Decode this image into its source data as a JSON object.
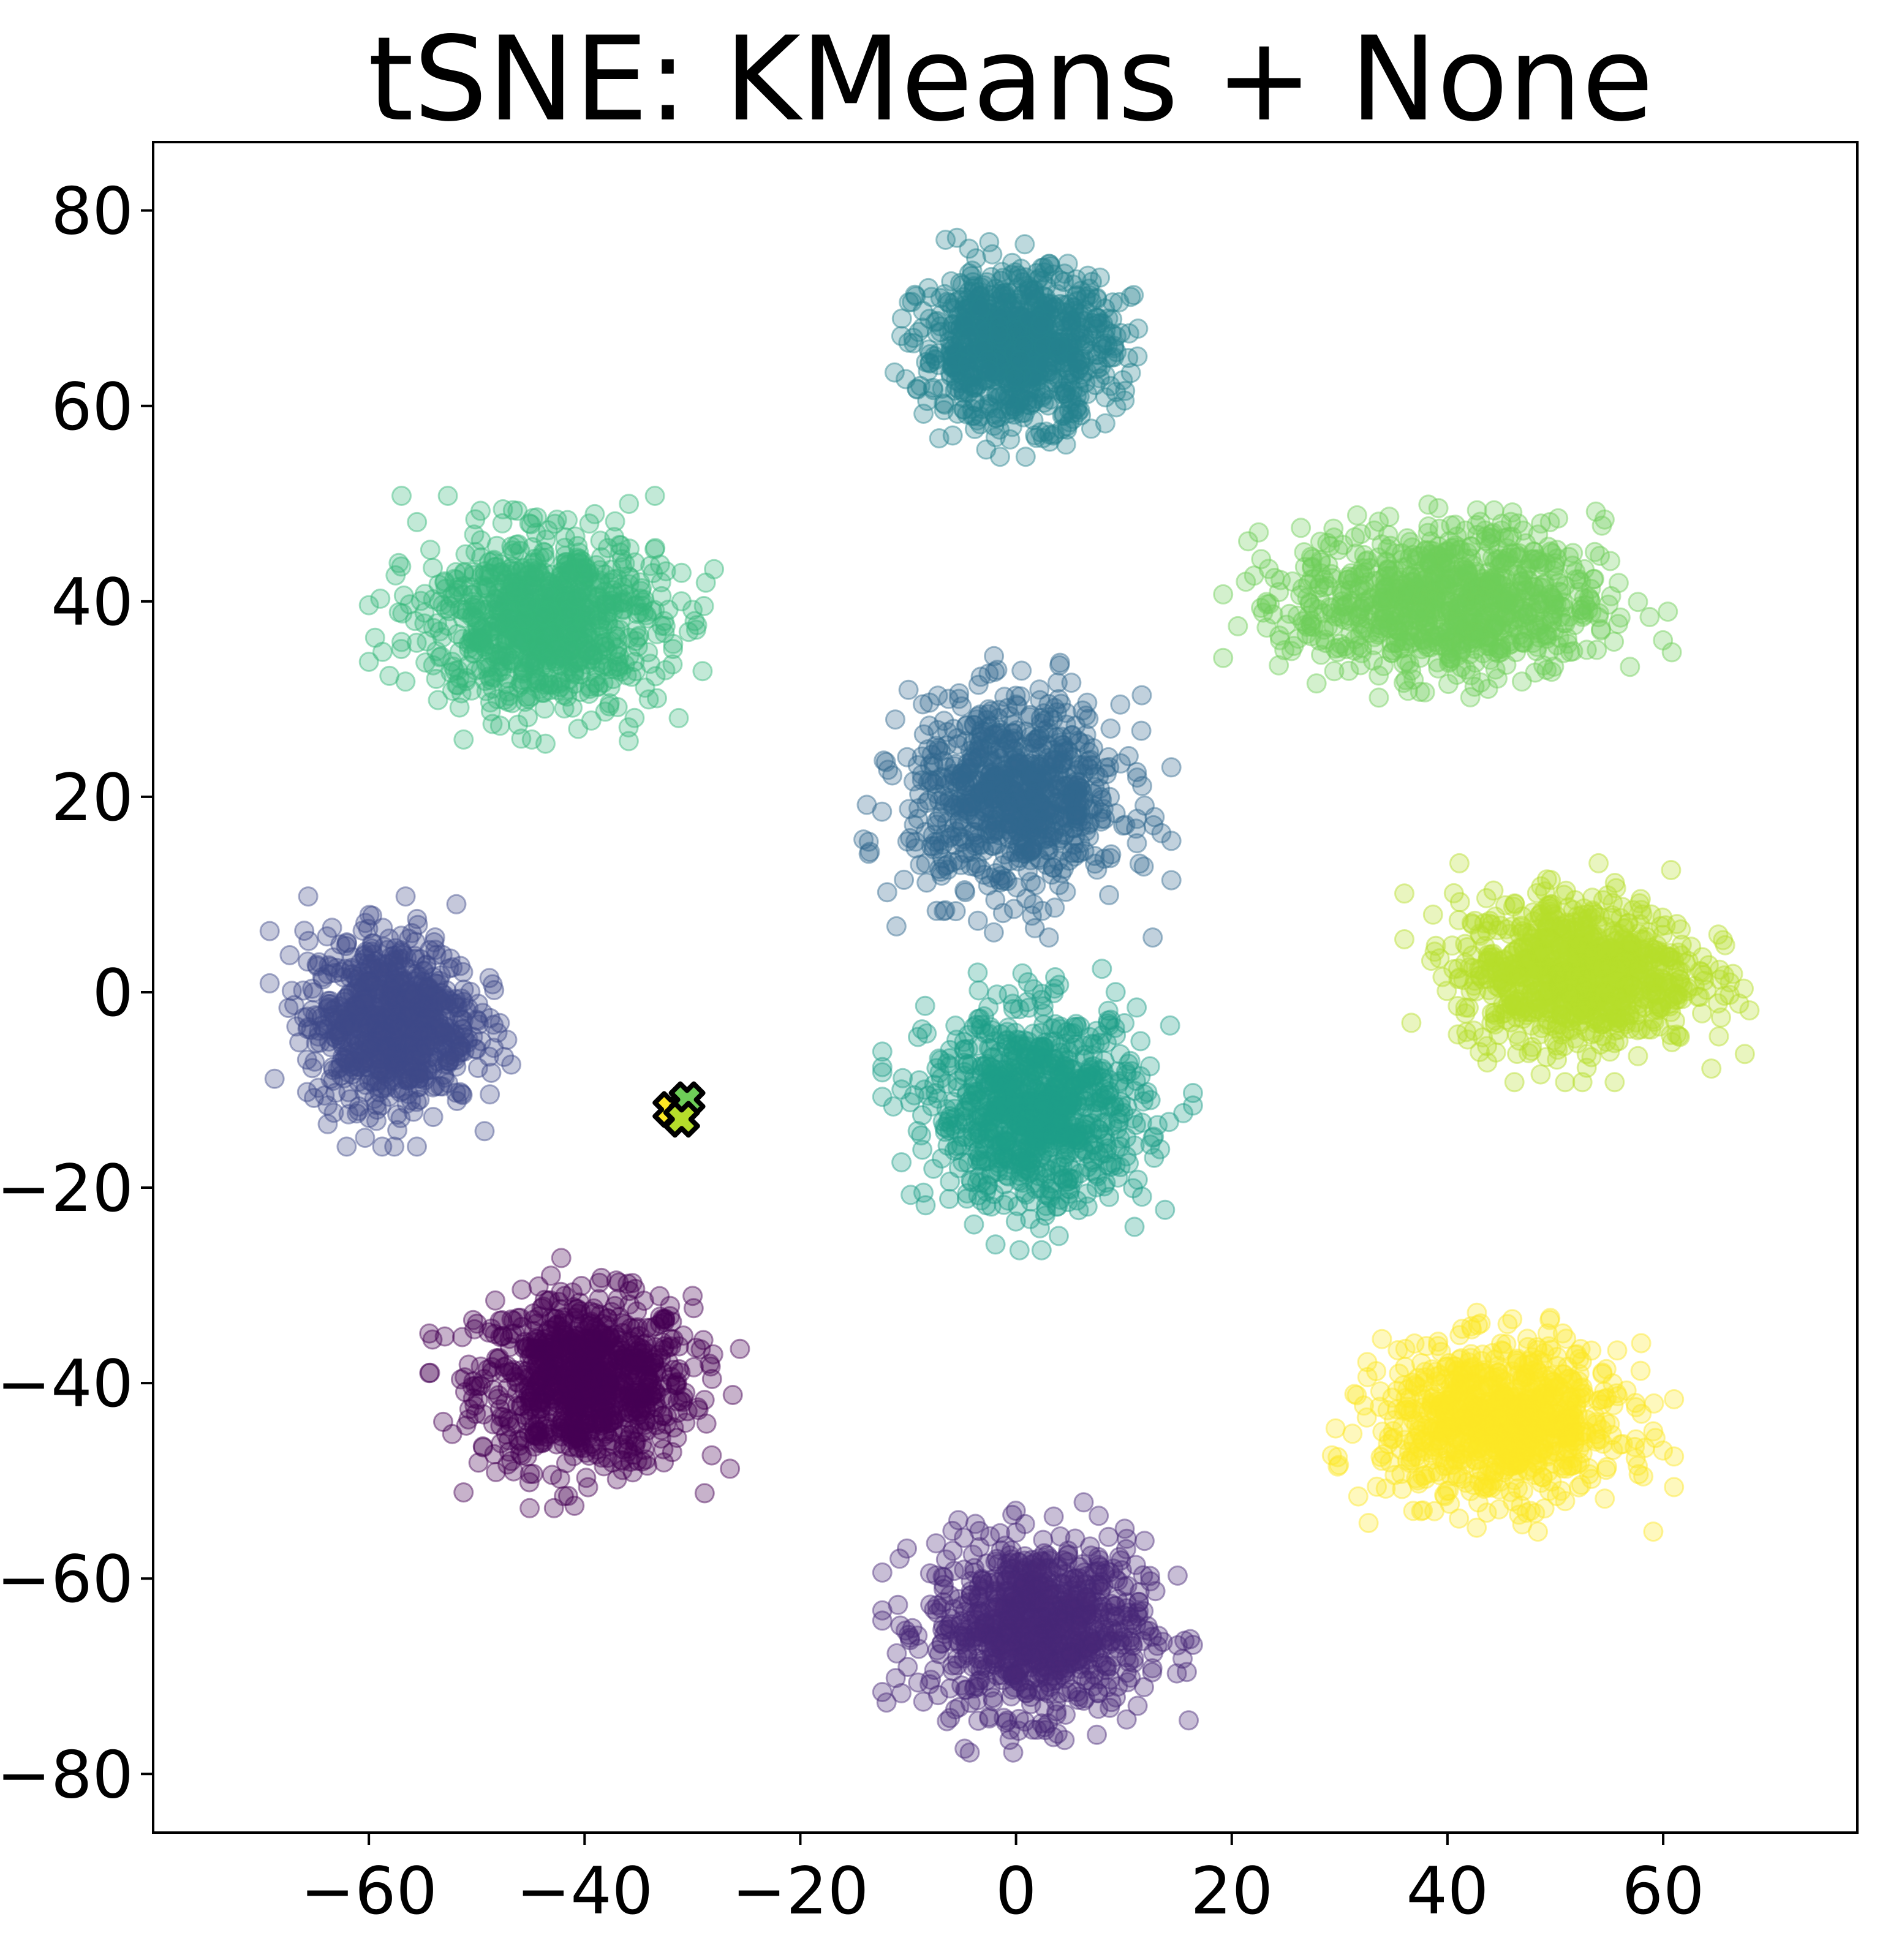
{
  "chart_data": {
    "type": "scatter",
    "title": "tSNE: KMeans + None",
    "xlabel": "",
    "ylabel": "",
    "xlim": [
      -80,
      78
    ],
    "ylim": [
      -86,
      87
    ],
    "xticks": [
      -60,
      -40,
      -20,
      0,
      20,
      40,
      60
    ],
    "yticks": [
      80,
      60,
      40,
      20,
      0,
      -20,
      -40,
      -60,
      -80
    ],
    "x_tick_labels": [
      "−60",
      "−40",
      "−20",
      "0",
      "20",
      "40",
      "60"
    ],
    "y_tick_labels": [
      "80",
      "60",
      "40",
      "20",
      "0",
      "−20",
      "−40",
      "−60",
      "−80"
    ],
    "grid": false,
    "legend": "none",
    "colormap": "viridis",
    "point_alpha": 0.3,
    "clusters": [
      {
        "label": 0,
        "color": "#440154",
        "center": [
          -40,
          -40
        ],
        "spread": [
          9,
          8
        ],
        "approx_points": 900
      },
      {
        "label": 1,
        "color": "#482878",
        "center": [
          2,
          -65
        ],
        "spread": [
          9,
          8
        ],
        "approx_points": 900
      },
      {
        "label": 2,
        "color": "#3e4989",
        "center": [
          -58,
          -3
        ],
        "spread": [
          7,
          8
        ],
        "approx_points": 800
      },
      {
        "label": 3,
        "color": "#31688e",
        "center": [
          0,
          20
        ],
        "spread": [
          9,
          9
        ],
        "approx_points": 800
      },
      {
        "label": 4,
        "color": "#26828e",
        "center": [
          0,
          66
        ],
        "spread": [
          8,
          7
        ],
        "approx_points": 900
      },
      {
        "label": 5,
        "color": "#1f9e89",
        "center": [
          2,
          -12
        ],
        "spread": [
          9,
          9
        ],
        "approx_points": 900
      },
      {
        "label": 6,
        "color": "#35b779",
        "center": [
          -44,
          38
        ],
        "spread": [
          10,
          8
        ],
        "approx_points": 900
      },
      {
        "label": 7,
        "color": "#6ece58",
        "center": [
          40,
          40
        ],
        "spread": [
          13,
          7
        ],
        "approx_points": 900
      },
      {
        "label": 8,
        "color": "#b5de2b",
        "center": [
          52,
          2
        ],
        "spread": [
          10,
          7
        ],
        "approx_points": 900
      },
      {
        "label": 9,
        "color": "#fde725",
        "center": [
          45,
          -44
        ],
        "spread": [
          10,
          7
        ],
        "approx_points": 900
      }
    ],
    "centroid_markers": [
      {
        "marker": "X",
        "x": -32,
        "y": -12,
        "fill": "#fde725",
        "edge": "#000000"
      },
      {
        "marker": "X",
        "x": -30.5,
        "y": -11,
        "fill": "#6ece58",
        "edge": "#000000"
      },
      {
        "marker": "X",
        "x": -31,
        "y": -13,
        "fill": "#b5de2b",
        "edge": "#000000"
      }
    ]
  }
}
